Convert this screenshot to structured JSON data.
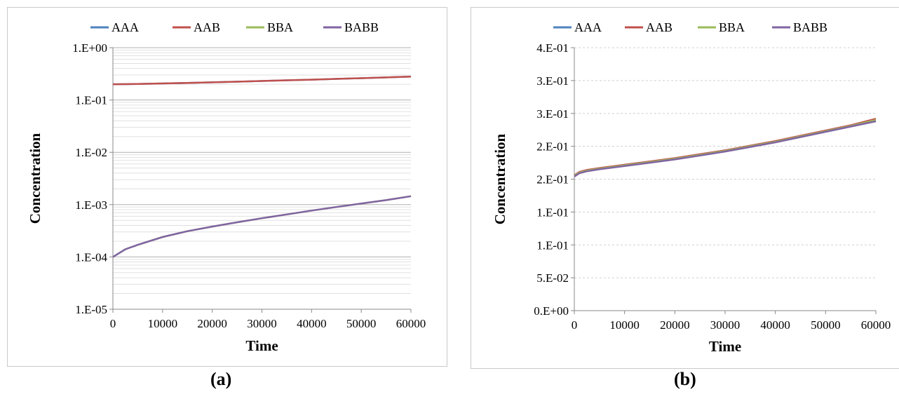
{
  "captions": [
    "(a)",
    "(b)"
  ],
  "chart_data": [
    {
      "type": "line",
      "panel_label": "(a)",
      "xlabel": "Time",
      "ylabel": "Concentration",
      "yscale": "log",
      "xlim": [
        0,
        60000
      ],
      "ylim": [
        1e-05,
        1
      ],
      "xticks": [
        0,
        10000,
        20000,
        30000,
        40000,
        50000,
        60000
      ],
      "xtick_labels": [
        "0",
        "10000",
        "20000",
        "30000",
        "40000",
        "50000",
        "60000"
      ],
      "yticks": [
        1e-05,
        0.0001,
        0.001,
        0.01,
        0.1,
        1
      ],
      "ytick_labels": [
        "1.E-05",
        "1.E-04",
        "1.E-03",
        "1.E-02",
        "1.E-01",
        "1.E+00"
      ],
      "grid": true,
      "legend_position": "top",
      "x": [
        0,
        2500,
        5000,
        10000,
        15000,
        20000,
        25000,
        30000,
        35000,
        40000,
        45000,
        50000,
        55000,
        60000
      ],
      "series": [
        {
          "name": "AAA",
          "color": "#4f81bd",
          "values": [
            0.2,
            0.201,
            0.203,
            0.207,
            0.212,
            0.218,
            0.224,
            0.231,
            0.238,
            0.245,
            0.253,
            0.261,
            0.27,
            0.28
          ]
        },
        {
          "name": "AAB",
          "color": "#c0504d",
          "values": [
            0.2,
            0.201,
            0.203,
            0.207,
            0.212,
            0.218,
            0.224,
            0.231,
            0.238,
            0.245,
            0.253,
            0.261,
            0.27,
            0.28
          ]
        },
        {
          "name": "BBA",
          "color": "#9bbb59",
          "values": [
            0.0001,
            0.00014,
            0.00017,
            0.00024,
            0.00031,
            0.00038,
            0.00046,
            0.00055,
            0.00065,
            0.00077,
            0.0009,
            0.00105,
            0.00122,
            0.00145
          ]
        },
        {
          "name": "BABB",
          "color": "#8064a2",
          "values": [
            0.0001,
            0.00014,
            0.00017,
            0.00024,
            0.00031,
            0.00038,
            0.00046,
            0.00055,
            0.00065,
            0.00077,
            0.0009,
            0.00105,
            0.00122,
            0.00145
          ]
        }
      ]
    },
    {
      "type": "line",
      "panel_label": "(b)",
      "xlabel": "Time",
      "ylabel": "Concentration",
      "yscale": "linear",
      "xlim": [
        0,
        60000
      ],
      "ylim": [
        0,
        0.4
      ],
      "xticks": [
        0,
        10000,
        20000,
        30000,
        40000,
        50000,
        60000
      ],
      "xtick_labels": [
        "0",
        "10000",
        "20000",
        "30000",
        "40000",
        "50000",
        "60000"
      ],
      "yticks": [
        0,
        0.05,
        0.1,
        0.15,
        0.2,
        0.25,
        0.3,
        0.35,
        0.4
      ],
      "ytick_labels": [
        "0.E+00",
        "5.E-02",
        "1.E-01",
        "1.E-01",
        "2.E-01",
        "2.E-01",
        "3.E-01",
        "3.E-01",
        "4.E-01"
      ],
      "grid": true,
      "legend_position": "top",
      "x": [
        0,
        1000,
        2500,
        5000,
        10000,
        15000,
        20000,
        25000,
        30000,
        35000,
        40000,
        45000,
        50000,
        55000,
        60000
      ],
      "series": [
        {
          "name": "AAA",
          "color": "#4f81bd",
          "values": [
            0.205,
            0.21,
            0.213,
            0.216,
            0.221,
            0.226,
            0.231,
            0.237,
            0.243,
            0.25,
            0.257,
            0.265,
            0.273,
            0.281,
            0.29
          ]
        },
        {
          "name": "AAB",
          "color": "#c0504d",
          "values": [
            0.206,
            0.211,
            0.214,
            0.217,
            0.222,
            0.227,
            0.232,
            0.238,
            0.244,
            0.251,
            0.258,
            0.266,
            0.274,
            0.282,
            0.292
          ]
        },
        {
          "name": "BBA",
          "color": "#9bbb59",
          "values": [
            0.205,
            0.21,
            0.213,
            0.216,
            0.221,
            0.226,
            0.231,
            0.237,
            0.243,
            0.25,
            0.257,
            0.265,
            0.273,
            0.281,
            0.29
          ]
        },
        {
          "name": "BABB",
          "color": "#8064a2",
          "values": [
            0.204,
            0.209,
            0.212,
            0.215,
            0.22,
            0.225,
            0.23,
            0.236,
            0.242,
            0.249,
            0.256,
            0.264,
            0.272,
            0.28,
            0.288
          ]
        }
      ]
    }
  ]
}
